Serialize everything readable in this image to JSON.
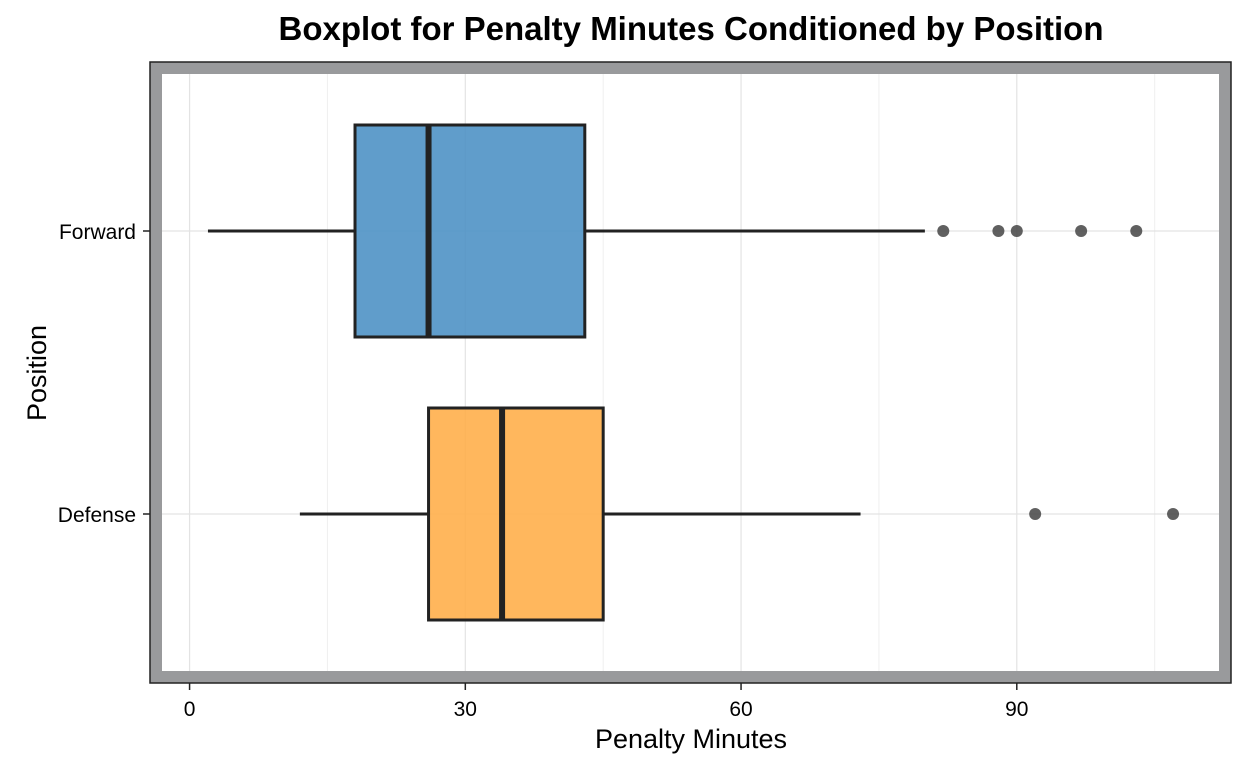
{
  "chart_data": {
    "type": "boxplot",
    "orientation": "horizontal",
    "title": "Boxplot for Penalty Minutes Conditioned by Position",
    "xlabel": "Penalty Minutes",
    "ylabel": "Position",
    "xlim": [
      -3,
      112
    ],
    "x_ticks": [
      0,
      30,
      60,
      90
    ],
    "x_minor_ticks": [
      15,
      45,
      75,
      105
    ],
    "categories": [
      "Forward",
      "Defense"
    ],
    "grid": true,
    "legend": "none",
    "series": [
      {
        "category": "Forward",
        "whisker_low": 2,
        "q1": 18,
        "median": 26,
        "q3": 43,
        "whisker_high": 80,
        "outliers": [
          82,
          88,
          90,
          97,
          103
        ],
        "color": "#4a90c4"
      },
      {
        "category": "Defense",
        "whisker_low": 12,
        "q1": 26,
        "median": 34,
        "q3": 45,
        "whisker_high": 73,
        "outliers": [
          92,
          107
        ],
        "color": "#ffad47"
      }
    ],
    "colors": {
      "panel_border": "#999a9c",
      "grid": "#e3e3e3",
      "box_outline": "#222222",
      "outlier": "#444444"
    }
  }
}
